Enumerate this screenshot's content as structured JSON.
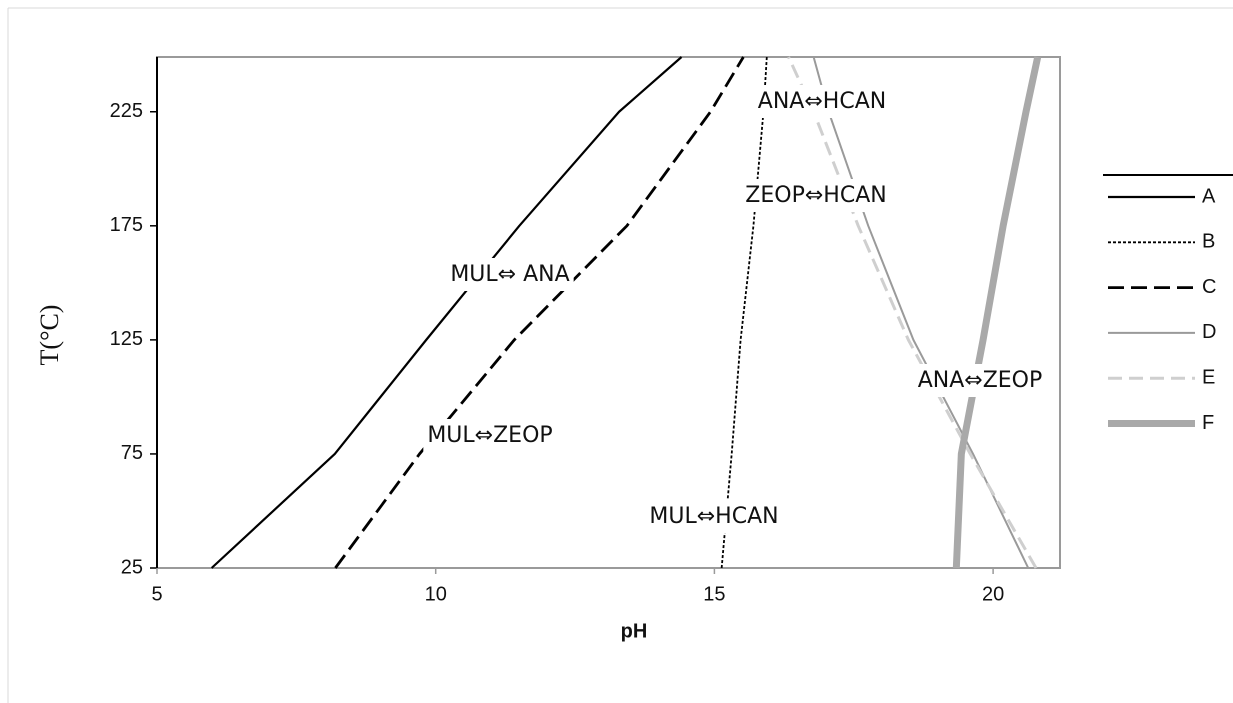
{
  "chart_data": {
    "type": "line",
    "xlabel": "pH",
    "ylabel": "T(°C)",
    "xlim": [
      5,
      21.2
    ],
    "ylim": [
      25,
      249
    ],
    "xticks": [
      5,
      10,
      15,
      20
    ],
    "yticks": [
      25,
      75,
      125,
      175,
      225
    ],
    "legend": "right",
    "series": [
      {
        "name": "A",
        "color": "#000000",
        "style": "solid",
        "x": [
          5.98,
          8.19,
          9.83,
          11.5,
          13.29,
          14.41
        ],
        "values": [
          25,
          75,
          125,
          175,
          225,
          249
        ]
      },
      {
        "name": "B",
        "color": "#000000",
        "style": "dotted",
        "x": [
          15.13,
          15.31,
          15.47,
          15.7,
          15.88,
          15.94
        ],
        "values": [
          25,
          75,
          125,
          175,
          225,
          249
        ]
      },
      {
        "name": "C",
        "color": "#000000",
        "style": "dashed",
        "x": [
          8.2,
          9.71,
          11.41,
          13.43,
          14.93,
          15.52
        ],
        "values": [
          25,
          75,
          125,
          175,
          225,
          249
        ]
      },
      {
        "name": "D",
        "color": "#9a9a9a",
        "style": "double",
        "x": [
          20.63,
          19.64,
          18.57,
          17.76,
          17.05,
          16.78
        ],
        "values": [
          25,
          75,
          125,
          175,
          225,
          249
        ]
      },
      {
        "name": "E",
        "color": "#cfcfcf",
        "style": "dashed",
        "x": [
          20.77,
          19.59,
          18.48,
          17.58,
          16.78,
          16.33
        ],
        "values": [
          25,
          75,
          125,
          175,
          225,
          249
        ]
      },
      {
        "name": "F",
        "color": "#a9a9a9",
        "style": "thick",
        "x": [
          19.34,
          19.43,
          19.82,
          20.18,
          20.59,
          20.8
        ],
        "values": [
          25,
          75,
          125,
          175,
          225,
          249
        ]
      }
    ],
    "annotations": [
      "MUL⇔ ANA",
      "MUL⇔ZEOP",
      "MUL⇔HCAN",
      "ANA⇔HCAN",
      "ZEOP⇔HCAN",
      "ANA⇔ZEOP"
    ]
  }
}
